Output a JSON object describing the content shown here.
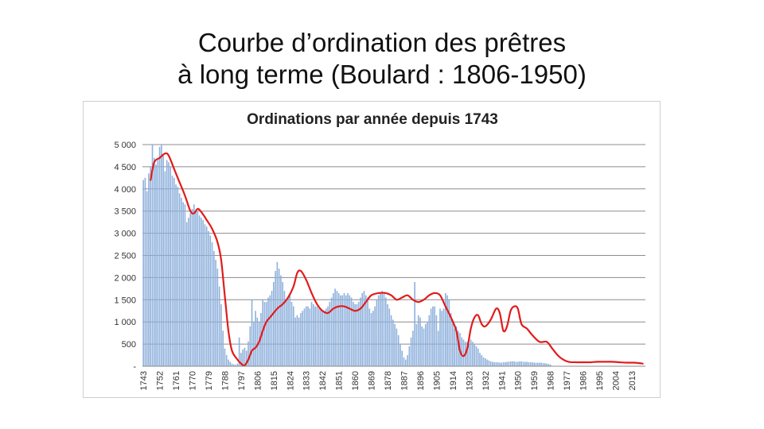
{
  "slide": {
    "title_line1": "Courbe d’ordination des prêtres",
    "title_line2": "à long terme (Boulard : 1806-1950)"
  },
  "chart_data": {
    "type": "bar",
    "title": "Ordinations par année depuis 1743",
    "xlabel": "",
    "ylabel": "",
    "ylim": [
      0,
      5000
    ],
    "grid": true,
    "y_ticks": [
      {
        "value": 0,
        "label": "-"
      },
      {
        "value": 500,
        "label": "500"
      },
      {
        "value": 1000,
        "label": "1 000"
      },
      {
        "value": 1500,
        "label": "1 500"
      },
      {
        "value": 2000,
        "label": "2 000"
      },
      {
        "value": 2500,
        "label": "2 500"
      },
      {
        "value": 3000,
        "label": "3 000"
      },
      {
        "value": 3500,
        "label": "3 500"
      },
      {
        "value": 4000,
        "label": "4 000"
      },
      {
        "value": 4500,
        "label": "4 500"
      },
      {
        "value": 5000,
        "label": "5 000"
      }
    ],
    "x_ticks": [
      "1743",
      "1752",
      "1761",
      "1770",
      "1779",
      "1788",
      "1797",
      "1806",
      "1815",
      "1824",
      "1833",
      "1842",
      "1851",
      "1860",
      "1869",
      "1878",
      "1887",
      "1896",
      "1905",
      "1914",
      "1923",
      "1932",
      "1941",
      "1950",
      "1959",
      "1968",
      "1977",
      "1986",
      "1995",
      "2004",
      "2013"
    ],
    "colors": {
      "bars": "#8eb0dc",
      "trend": "#e21b1b",
      "grid": "#8c8c8c"
    },
    "series": [
      {
        "type": "bar",
        "x_start": 1743,
        "values": [
          4200,
          4250,
          3950,
          4350,
          4500,
          5000,
          4700,
          4550,
          4650,
          4950,
          5000,
          4750,
          4400,
          4650,
          4600,
          4500,
          4300,
          4250,
          4100,
          4050,
          3900,
          3800,
          3700,
          3650,
          3250,
          3350,
          3450,
          3550,
          3650,
          3500,
          3500,
          3400,
          3350,
          3300,
          3200,
          3150,
          3050,
          2950,
          2800,
          2600,
          2400,
          2200,
          1800,
          1400,
          800,
          400,
          250,
          150,
          100,
          60,
          40,
          30,
          60,
          650,
          300,
          380,
          420,
          350,
          560,
          900,
          1500,
          1000,
          1250,
          1100,
          1000,
          1200,
          1500,
          1450,
          1450,
          1550,
          1600,
          1700,
          1900,
          2150,
          2350,
          2200,
          2050,
          1900,
          1700,
          1500,
          1550,
          1600,
          1450,
          1350,
          1100,
          1150,
          1100,
          1200,
          1250,
          1300,
          1350,
          1350,
          1300,
          1450,
          1400,
          1350,
          1350,
          1300,
          1300,
          1250,
          1250,
          1300,
          1350,
          1450,
          1550,
          1650,
          1750,
          1700,
          1650,
          1600,
          1600,
          1650,
          1600,
          1650,
          1600,
          1550,
          1450,
          1400,
          1400,
          1450,
          1550,
          1650,
          1700,
          1600,
          1550,
          1300,
          1200,
          1250,
          1350,
          1500,
          1600,
          1650,
          1700,
          1650,
          1550,
          1400,
          1300,
          1150,
          1050,
          950,
          850,
          700,
          500,
          350,
          200,
          150,
          250,
          450,
          650,
          800,
          1900,
          950,
          1150,
          1100,
          900,
          850,
          950,
          1000,
          1150,
          1300,
          1350,
          1350,
          1150,
          800,
          1300,
          1250,
          1300,
          1650,
          1600,
          1500,
          1200,
          1000,
          850,
          900,
          800,
          750,
          650,
          600,
          550,
          550,
          500,
          600,
          550,
          500,
          450,
          400,
          300,
          250,
          200,
          180,
          150,
          130,
          110,
          100,
          90,
          90,
          90,
          80,
          80,
          90,
          90,
          100,
          100,
          110,
          110,
          110,
          100,
          100,
          110,
          110,
          100,
          100,
          100,
          90,
          90,
          90,
          80,
          80,
          80,
          80,
          80,
          70,
          70,
          60,
          50,
          40
        ]
      },
      {
        "type": "line",
        "name": "",
        "points": [
          [
            1747,
            4200
          ],
          [
            1749,
            4600
          ],
          [
            1752,
            4700
          ],
          [
            1755,
            4800
          ],
          [
            1757,
            4750
          ],
          [
            1760,
            4450
          ],
          [
            1763,
            4150
          ],
          [
            1766,
            3850
          ],
          [
            1769,
            3500
          ],
          [
            1771,
            3450
          ],
          [
            1773,
            3550
          ],
          [
            1775,
            3480
          ],
          [
            1778,
            3300
          ],
          [
            1781,
            3100
          ],
          [
            1784,
            2800
          ],
          [
            1786,
            2400
          ],
          [
            1788,
            1600
          ],
          [
            1790,
            800
          ],
          [
            1792,
            350
          ],
          [
            1795,
            150
          ],
          [
            1797,
            60
          ],
          [
            1799,
            20
          ],
          [
            1801,
            150
          ],
          [
            1803,
            350
          ],
          [
            1805,
            420
          ],
          [
            1807,
            550
          ],
          [
            1809,
            800
          ],
          [
            1811,
            1000
          ],
          [
            1814,
            1150
          ],
          [
            1817,
            1300
          ],
          [
            1820,
            1400
          ],
          [
            1823,
            1550
          ],
          [
            1826,
            1800
          ],
          [
            1828,
            2100
          ],
          [
            1830,
            2150
          ],
          [
            1833,
            1950
          ],
          [
            1836,
            1650
          ],
          [
            1839,
            1400
          ],
          [
            1842,
            1250
          ],
          [
            1845,
            1200
          ],
          [
            1848,
            1300
          ],
          [
            1851,
            1350
          ],
          [
            1854,
            1350
          ],
          [
            1857,
            1300
          ],
          [
            1860,
            1250
          ],
          [
            1863,
            1300
          ],
          [
            1866,
            1450
          ],
          [
            1869,
            1600
          ],
          [
            1873,
            1650
          ],
          [
            1877,
            1650
          ],
          [
            1880,
            1600
          ],
          [
            1883,
            1500
          ],
          [
            1886,
            1550
          ],
          [
            1889,
            1600
          ],
          [
            1892,
            1500
          ],
          [
            1895,
            1450
          ],
          [
            1898,
            1500
          ],
          [
            1901,
            1600
          ],
          [
            1904,
            1650
          ],
          [
            1907,
            1600
          ],
          [
            1910,
            1350
          ],
          [
            1913,
            1100
          ],
          [
            1916,
            800
          ],
          [
            1918,
            350
          ],
          [
            1920,
            230
          ],
          [
            1922,
            400
          ],
          [
            1924,
            850
          ],
          [
            1926,
            1100
          ],
          [
            1928,
            1150
          ],
          [
            1930,
            950
          ],
          [
            1932,
            900
          ],
          [
            1935,
            1050
          ],
          [
            1938,
            1300
          ],
          [
            1940,
            1200
          ],
          [
            1942,
            800
          ],
          [
            1944,
            900
          ],
          [
            1946,
            1250
          ],
          [
            1948,
            1350
          ],
          [
            1950,
            1300
          ],
          [
            1952,
            950
          ],
          [
            1955,
            850
          ],
          [
            1958,
            700
          ],
          [
            1962,
            550
          ],
          [
            1966,
            550
          ],
          [
            1969,
            400
          ],
          [
            1972,
            250
          ],
          [
            1975,
            150
          ],
          [
            1978,
            100
          ],
          [
            1982,
            90
          ],
          [
            1986,
            90
          ],
          [
            1990,
            90
          ],
          [
            1994,
            100
          ],
          [
            1998,
            100
          ],
          [
            2002,
            100
          ],
          [
            2006,
            90
          ],
          [
            2010,
            80
          ],
          [
            2014,
            80
          ],
          [
            2017,
            70
          ],
          [
            2019,
            60
          ]
        ]
      }
    ]
  }
}
